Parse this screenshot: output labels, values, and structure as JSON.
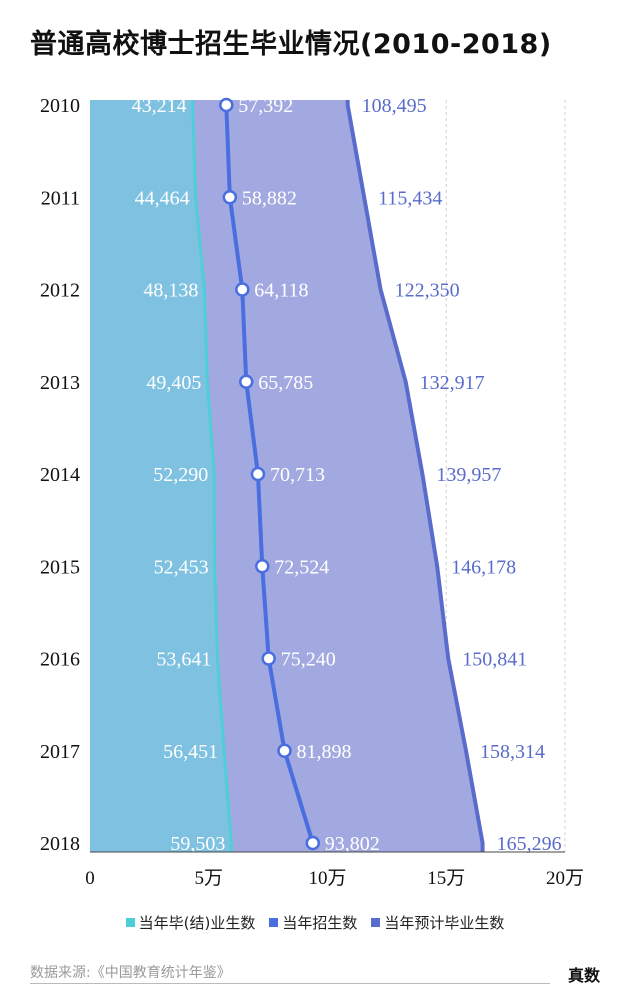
{
  "chart_data": {
    "type": "area",
    "orientation": "horizontal",
    "title": "普通高校博士招生毕业情况(2010-2018)",
    "categories": [
      "2010",
      "2011",
      "2012",
      "2013",
      "2014",
      "2015",
      "2016",
      "2017",
      "2018"
    ],
    "series": [
      {
        "name": "当年毕(结)业生数",
        "values": [
          43214,
          44464,
          48138,
          49405,
          52290,
          52453,
          53641,
          56451,
          59503
        ],
        "labels": [
          "43,214",
          "44,464",
          "48,138",
          "49,405",
          "52,290",
          "52,453",
          "53,641",
          "56,451",
          "59,503"
        ],
        "color": "#7fc1e0",
        "edge_color": "#4ecfd8"
      },
      {
        "name": "当年招生数",
        "values": [
          57392,
          58882,
          64118,
          65785,
          70713,
          72524,
          75240,
          81898,
          93802
        ],
        "labels": [
          "57,392",
          "58,882",
          "64,118",
          "65,785",
          "70,713",
          "72,524",
          "75,240",
          "81,898",
          "93,802"
        ],
        "color": "#4a6ee0"
      },
      {
        "name": "当年预计毕业生数",
        "values": [
          108495,
          115434,
          122350,
          132917,
          139957,
          146178,
          150841,
          158314,
          165296
        ],
        "labels": [
          "108,495",
          "115,434",
          "122,350",
          "132,917",
          "139,957",
          "146,178",
          "150,841",
          "158,314",
          "165,296"
        ],
        "color": "#a2a9e0",
        "edge_color": "#5a6ccb"
      }
    ],
    "x_ticks": [
      {
        "value": 0,
        "label": "0"
      },
      {
        "value": 50000,
        "label": "5万"
      },
      {
        "value": 100000,
        "label": "10万"
      },
      {
        "value": 150000,
        "label": "15万"
      },
      {
        "value": 200000,
        "label": "20万"
      }
    ],
    "xlim": [
      0,
      200000
    ],
    "grid": true,
    "legend_position": "bottom"
  },
  "footer": {
    "source": "数据来源:《中国教育统计年鉴》",
    "brand": "真数"
  }
}
